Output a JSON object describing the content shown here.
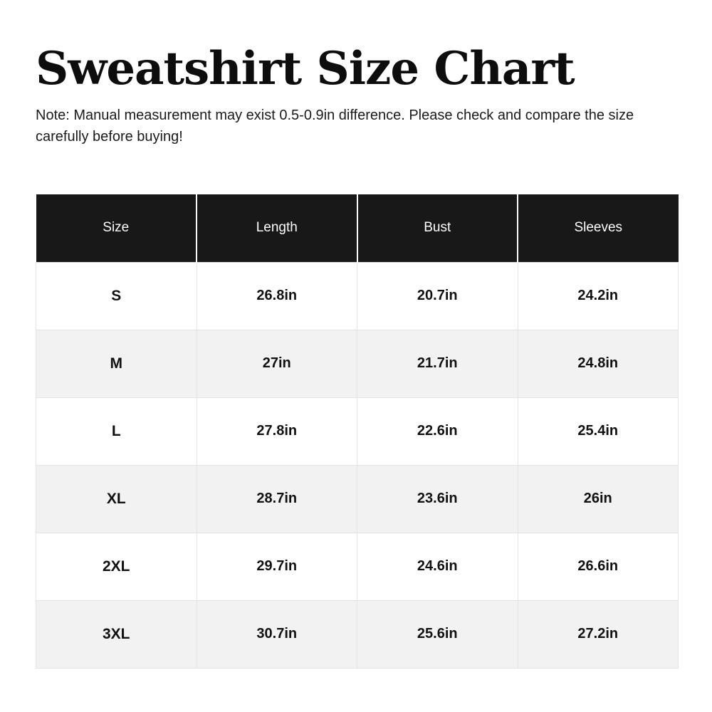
{
  "page": {
    "title": "Sweatshirt Size Chart",
    "note": "Note: Manual measurement may exist 0.5-0.9in difference. Please check and compare the size carefully before buying!"
  },
  "colors": {
    "header_bg": "#181818",
    "header_text": "#ffffff",
    "row_bg": "#ffffff",
    "row_alt_bg": "#f2f2f2",
    "border": "#e3e3e3",
    "text": "#111111"
  },
  "chart_data": {
    "type": "table",
    "title": "Sweatshirt Size Chart",
    "columns": [
      "Size",
      "Length",
      "Bust",
      "Sleeves"
    ],
    "rows": [
      {
        "size": "S",
        "length": "26.8in",
        "bust": "20.7in",
        "sleeves": "24.2in"
      },
      {
        "size": "M",
        "length": "27in",
        "bust": "21.7in",
        "sleeves": "24.8in"
      },
      {
        "size": "L",
        "length": "27.8in",
        "bust": "22.6in",
        "sleeves": "25.4in"
      },
      {
        "size": "XL",
        "length": "28.7in",
        "bust": "23.6in",
        "sleeves": "26in"
      },
      {
        "size": "2XL",
        "length": "29.7in",
        "bust": "24.6in",
        "sleeves": "26.6in"
      },
      {
        "size": "3XL",
        "length": "30.7in",
        "bust": "25.6in",
        "sleeves": "27.2in"
      }
    ]
  }
}
